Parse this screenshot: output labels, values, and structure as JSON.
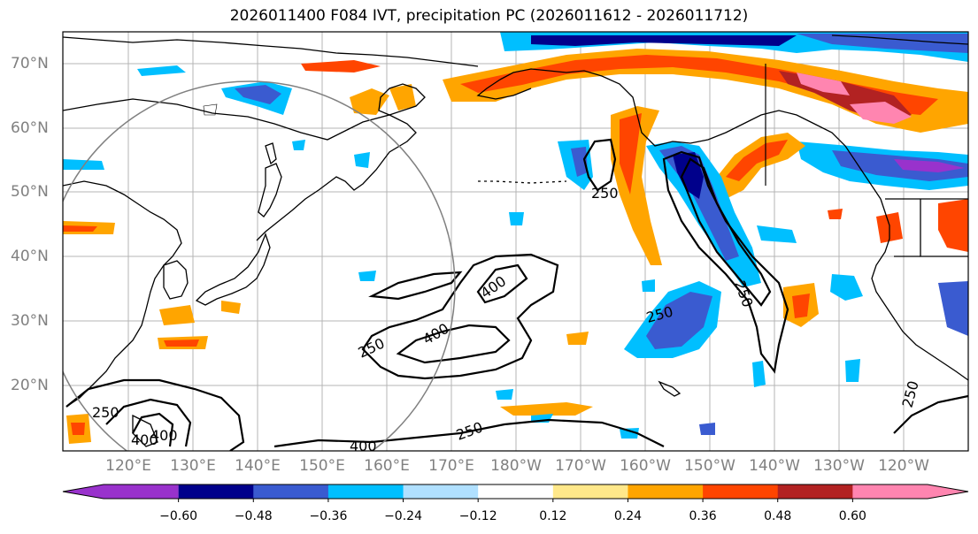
{
  "title": "2026011400 F084 IVT, precipitation PC (2026011612 - 2026011712)",
  "lat_labels": [
    "70°N",
    "60°N",
    "50°N",
    "40°N",
    "30°N",
    "20°N"
  ],
  "lon_labels": [
    "120°E",
    "130°E",
    "140°E",
    "150°E",
    "160°E",
    "170°E",
    "180°W",
    "170°W",
    "160°W",
    "150°W",
    "140°W",
    "130°W",
    "120°W"
  ],
  "contour_labels": [
    "250",
    "250",
    "250",
    "250",
    "250",
    "250",
    "250",
    "400",
    "400",
    "400",
    "400",
    "400"
  ],
  "colorbar": {
    "colors": [
      "#9932cc",
      "#00008b",
      "#3a5bd0",
      "#00bfff",
      "#b0e0ff",
      "#ffffff",
      "#ffe88a",
      "#ffa500",
      "#ff4500",
      "#b22222",
      "#ff85b0"
    ],
    "tick_labels": [
      "−0.60",
      "−0.48",
      "−0.36",
      "−0.24",
      "−0.12",
      "0.12",
      "0.24",
      "0.36",
      "0.48",
      "0.60"
    ]
  }
}
